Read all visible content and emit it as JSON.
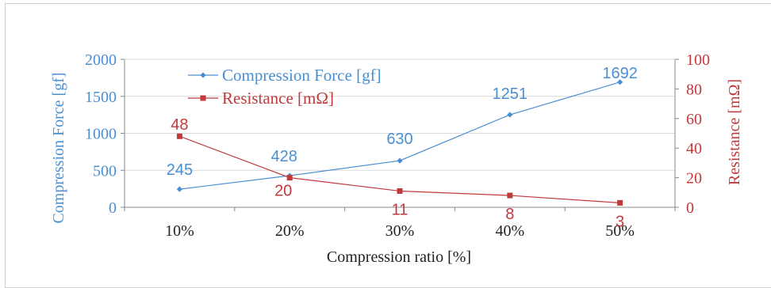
{
  "chart_data": {
    "type": "line",
    "xlabel": "Compression ratio [%]",
    "ylabel_left": "Compression Force [gf]",
    "ylabel_right": "Resistance [mΩ]",
    "categories": [
      "10%",
      "20%",
      "30%",
      "40%",
      "50%"
    ],
    "ylim_left": [
      0,
      2000
    ],
    "yticks_left": [
      0,
      500,
      1000,
      1500,
      2000
    ],
    "ylim_right": [
      0,
      100
    ],
    "yticks_right": [
      0,
      20,
      40,
      60,
      80,
      100
    ],
    "grid": "horizontal",
    "legend_position": "top-left",
    "series": [
      {
        "name": "Compression Force [gf]",
        "axis": "left",
        "color": "#4a8fd1",
        "marker": "diamond",
        "values": [
          245,
          428,
          630,
          1251,
          1692
        ],
        "labels": [
          "245",
          "428",
          "630",
          "1251",
          "1692"
        ]
      },
      {
        "name": "Resistance [mΩ]",
        "axis": "right",
        "color": "#c0393b",
        "marker": "square",
        "values": [
          48,
          20,
          11,
          8,
          3
        ],
        "labels": [
          "48",
          "20",
          "11",
          "8",
          "3"
        ]
      }
    ]
  }
}
